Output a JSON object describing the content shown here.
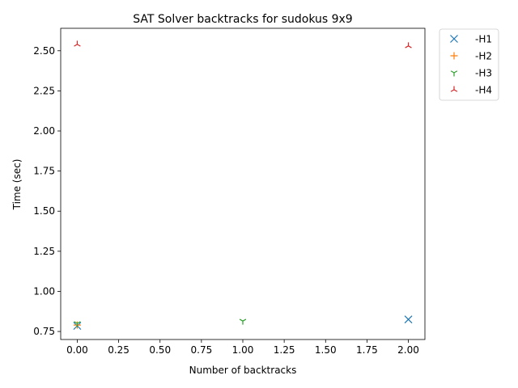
{
  "chart_data": {
    "type": "scatter",
    "title": "SAT Solver backtracks for sudokus 9x9",
    "xlabel": "Number of backtracks",
    "ylabel": "Time (sec)",
    "xlim": [
      -0.1,
      2.1
    ],
    "ylim": [
      0.7,
      2.64
    ],
    "xticks": [
      0.0,
      0.25,
      0.5,
      0.75,
      1.0,
      1.25,
      1.5,
      1.75,
      2.0
    ],
    "xtick_labels": [
      "0.00",
      "0.25",
      "0.50",
      "0.75",
      "1.00",
      "1.25",
      "1.50",
      "1.75",
      "2.00"
    ],
    "yticks": [
      0.75,
      1.0,
      1.25,
      1.5,
      1.75,
      2.0,
      2.25,
      2.5
    ],
    "ytick_labels": [
      "0.75",
      "1.00",
      "1.25",
      "1.50",
      "1.75",
      "2.00",
      "2.25",
      "2.50"
    ],
    "grid": false,
    "legend_position": "outside-top-right",
    "series": [
      {
        "name": "-H1",
        "marker": "x",
        "color": "#1f77b4",
        "x": [
          0,
          2
        ],
        "y": [
          0.785,
          0.825
        ]
      },
      {
        "name": "-H2",
        "marker": "+",
        "color": "#ff7f0e",
        "x": [
          0
        ],
        "y": [
          0.79
        ]
      },
      {
        "name": "-H3",
        "marker": "tri_down",
        "color": "#2ca02c",
        "x": [
          0,
          1
        ],
        "y": [
          0.8,
          0.815
        ]
      },
      {
        "name": "-H4",
        "marker": "tri_up",
        "color": "#d62728",
        "x": [
          0,
          2
        ],
        "y": [
          2.54,
          2.53
        ]
      }
    ]
  }
}
